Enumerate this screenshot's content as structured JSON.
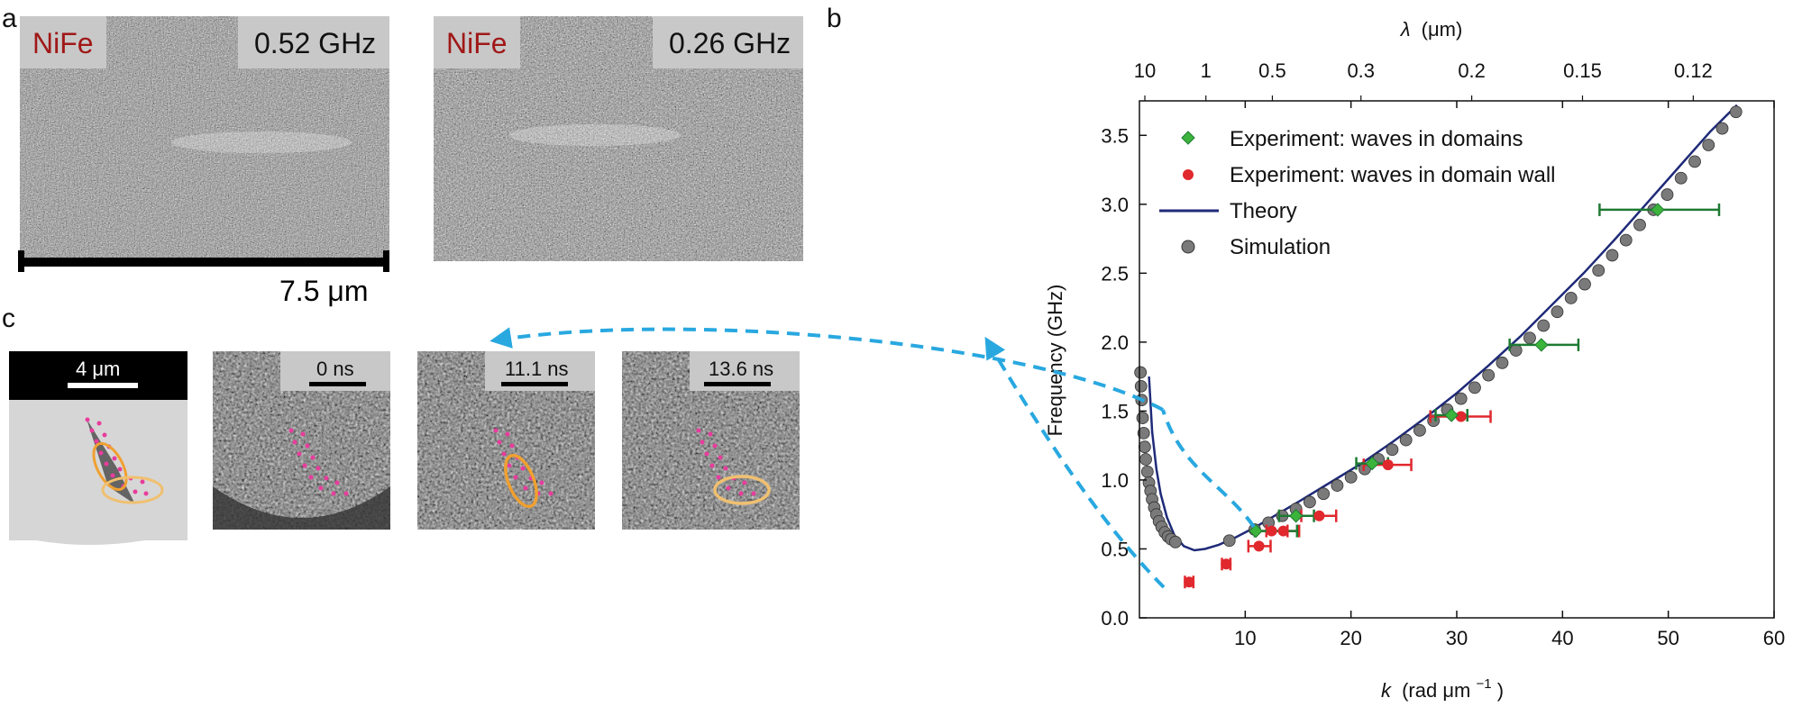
{
  "panel_a": {
    "letter": "a",
    "left_image": {
      "material": "NiFe",
      "frequency": "0.52 GHz"
    },
    "right_image": {
      "material": "NiFe",
      "frequency": "0.26 GHz"
    },
    "scale_bar": "7.5 μm"
  },
  "panel_b": {
    "letter": "b"
  },
  "panel_c": {
    "letter": "c",
    "first_image_scale": "4 μm",
    "time_frames": [
      "0 ns",
      "11.1 ns",
      "13.6 ns"
    ]
  },
  "colors": {
    "material_label": "#a01818",
    "label_box": "#c8c8c8",
    "arrow": "#29a8e0",
    "theory": "#1f2a78",
    "simulation": "#7a7a7a",
    "domains": "#3cb43c",
    "domain_wall": "#e0282d",
    "errbar_green": "#1e7a32",
    "pink_dots": "#e83c9c",
    "orange_ellipse": "#f0a030"
  },
  "chart_data": {
    "type": "scatter",
    "xlabel_var": "k",
    "xlabel_unit": "(rad μm",
    "xlabel_exp": "−1",
    "xlabel_close": ")",
    "ylabel": "Frequency (GHz)",
    "top_label_var": "λ",
    "top_label_unit": "(μm)",
    "xlim": [
      0,
      60
    ],
    "ylim": [
      0,
      3.75
    ],
    "x_ticks": [
      10,
      20,
      30,
      40,
      50,
      60
    ],
    "y_ticks": [
      "0.0",
      "0.5",
      "1.0",
      "1.5",
      "2.0",
      "2.5",
      "3.0",
      "3.5"
    ],
    "y_tick_values": [
      0,
      0.5,
      1.0,
      1.5,
      2.0,
      2.5,
      3.0,
      3.5
    ],
    "top_ticks": [
      "10",
      "1",
      "0.5",
      "0.3",
      "0.2",
      "0.15",
      "0.12"
    ],
    "top_tick_lambda": [
      10,
      1,
      0.5,
      0.3,
      0.2,
      0.15,
      0.12
    ],
    "legend": [
      {
        "key": "domains",
        "label": "Experiment: waves in domains"
      },
      {
        "key": "wall",
        "label": "Experiment: waves in domain wall"
      },
      {
        "key": "theory",
        "label": "Theory"
      },
      {
        "key": "sim",
        "label": "Simulation"
      }
    ],
    "theory_curve": {
      "x": [
        0.9,
        1.2,
        1.6,
        2.0,
        2.6,
        3.3,
        4.2,
        5.2,
        6.2,
        7.5,
        9,
        11,
        13,
        15,
        18,
        21,
        24,
        27,
        30,
        33,
        36,
        39,
        42,
        45,
        48,
        51,
        54,
        56.5
      ],
      "y": [
        1.75,
        1.35,
        1.08,
        0.9,
        0.73,
        0.6,
        0.52,
        0.49,
        0.5,
        0.53,
        0.58,
        0.66,
        0.75,
        0.84,
        0.98,
        1.12,
        1.28,
        1.45,
        1.63,
        1.83,
        2.04,
        2.27,
        2.5,
        2.75,
        3.01,
        3.27,
        3.53,
        3.72
      ]
    },
    "simulation": {
      "x": [
        0.1,
        0.15,
        0.2,
        0.3,
        0.4,
        0.5,
        0.6,
        0.75,
        0.9,
        1.05,
        1.2,
        1.4,
        1.6,
        1.85,
        2.1,
        2.4,
        2.7,
        3.0,
        3.4,
        8.5,
        10.9,
        12.2,
        13.5,
        14.8,
        16.1,
        17.4,
        18.7,
        20,
        21.3,
        22.6,
        23.9,
        25.2,
        26.5,
        27.8,
        29.1,
        30.4,
        31.7,
        33,
        34.3,
        35.6,
        36.9,
        38.2,
        39.5,
        40.8,
        42.1,
        43.4,
        44.7,
        46,
        47.3,
        48.6,
        49.9,
        51.2,
        52.5,
        53.8,
        55.1,
        56.4
      ],
      "y": [
        1.78,
        1.68,
        1.58,
        1.45,
        1.34,
        1.24,
        1.15,
        1.06,
        0.98,
        0.92,
        0.86,
        0.8,
        0.75,
        0.7,
        0.66,
        0.62,
        0.59,
        0.57,
        0.55,
        0.56,
        0.64,
        0.69,
        0.74,
        0.79,
        0.84,
        0.9,
        0.96,
        1.02,
        1.08,
        1.15,
        1.22,
        1.29,
        1.36,
        1.43,
        1.51,
        1.59,
        1.67,
        1.76,
        1.85,
        1.94,
        2.03,
        2.12,
        2.22,
        2.32,
        2.42,
        2.52,
        2.63,
        2.74,
        2.85,
        2.96,
        3.07,
        3.19,
        3.31,
        3.43,
        3.55,
        3.67
      ]
    },
    "domains": [
      {
        "x": 11,
        "y": 0.63,
        "xerr": [
          10.9,
          14.9
        ]
      },
      {
        "x": 14.8,
        "y": 0.74,
        "xerr": [
          13.2,
          16.5
        ]
      },
      {
        "x": 22,
        "y": 1.12,
        "xerr": [
          20.5,
          23.5
        ]
      },
      {
        "x": 29.5,
        "y": 1.47,
        "xerr": [
          28,
          31
        ]
      },
      {
        "x": 38,
        "y": 1.98,
        "xerr": [
          35,
          41.5
        ]
      },
      {
        "x": 49,
        "y": 2.96,
        "xerr": [
          43.5,
          54.8
        ]
      }
    ],
    "domain_wall": [
      {
        "x": 4.7,
        "y": 0.26,
        "xerr": [
          4.3,
          5.1
        ]
      },
      {
        "x": 8.2,
        "y": 0.39,
        "xerr": [
          7.8,
          8.6
        ]
      },
      {
        "x": 11.3,
        "y": 0.52,
        "xerr": [
          10.3,
          12.4
        ]
      },
      {
        "x": 12.5,
        "y": 0.63,
        "xerr": [
          11,
          14
        ]
      },
      {
        "x": 13.6,
        "y": 0.63,
        "xerr": [
          12,
          15.1
        ]
      },
      {
        "x": 17,
        "y": 0.74,
        "xerr": [
          15.3,
          18.6
        ]
      },
      {
        "x": 23.5,
        "y": 1.11,
        "xerr": [
          21.2,
          25.7
        ]
      },
      {
        "x": 30.4,
        "y": 1.46,
        "xerr": [
          27.5,
          33.2
        ]
      }
    ]
  }
}
